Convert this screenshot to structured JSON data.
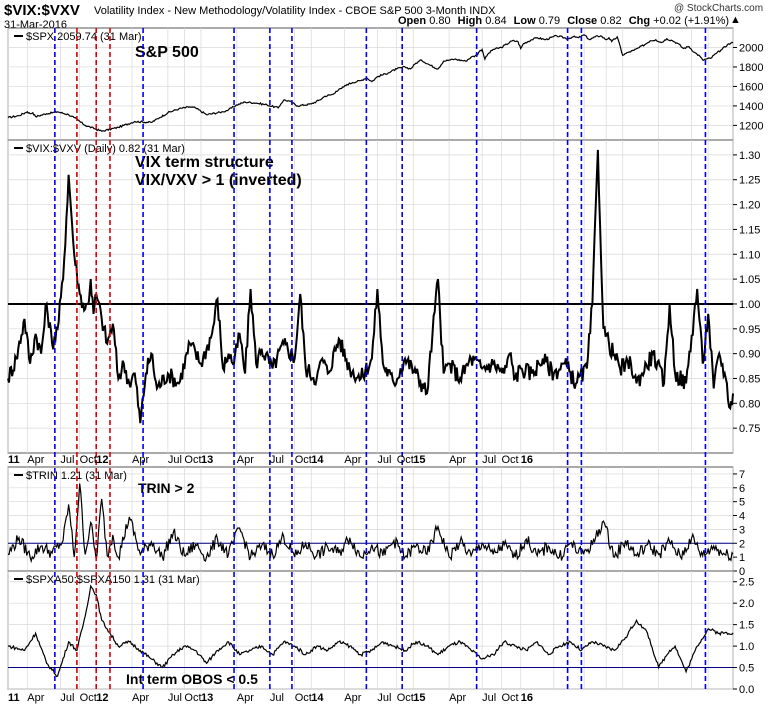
{
  "header": {
    "symbol": "$VIX:$VXV",
    "description": "Volatility Index - New Methodology/Volatility Index - CBOE S&P 500 3-Month  INDX",
    "date": "31-Mar-2016",
    "watermark": "@ StockCharts.com",
    "ohlc": {
      "open_label": "Open",
      "open": "0.80",
      "high_label": "High",
      "high": "0.84",
      "low_label": "Low",
      "low": "0.79",
      "close_label": "Close",
      "close": "0.82",
      "chg_label": "Chg",
      "chg": "+0.02 (+1.91%)"
    }
  },
  "colors": {
    "line": "#000000",
    "blue_marker": "#0000ee",
    "red_marker": "#dd0000",
    "grid": "#d8d8d8",
    "ref_line": "#000080"
  },
  "chart_data": [
    {
      "id": "spx",
      "type": "line",
      "legend": "$SPX 2059.74 (31 Mar)",
      "annotation": "S&P 500",
      "ylim": [
        1050,
        2200
      ],
      "yticks": [
        1200,
        1400,
        1600,
        1800,
        2000
      ],
      "ytick_labels": [
        "1200",
        "1400",
        "1600",
        "1800",
        "2000"
      ],
      "x_anchor": [
        0,
        4,
        7,
        8,
        9,
        10,
        14,
        18,
        22,
        24,
        28,
        34,
        40,
        46,
        52,
        55,
        58,
        62,
        66,
        68,
        72,
        78,
        80,
        83,
        86,
        90,
        94,
        98,
        99,
        100,
        102,
        105,
        110,
        113,
        115,
        118,
        119,
        121,
        123,
        125,
        128,
        130,
        132,
        134,
        138,
        141,
        144,
        146,
        148,
        150,
        153,
        156,
        158,
        160,
        162,
        166,
        168,
        170,
        171,
        172,
        173,
        174,
        176,
        179,
        183,
        185,
        186,
        187,
        190,
        192,
        195,
        199,
        203,
        205,
        207,
        209,
        211,
        213,
        215,
        217,
        218,
        219,
        221,
        223,
        225,
        227,
        229,
        231,
        233,
        235,
        237,
        239,
        241,
        243,
        245,
        247,
        249,
        251,
        252,
        253,
        255,
        256,
        257,
        259,
        261,
        263
      ],
      "values": [
        1280,
        1300,
        1340,
        1320,
        1330,
        1290,
        1320,
        1340,
        1310,
        1280,
        1200,
        1140,
        1180,
        1240,
        1230,
        1280,
        1330,
        1370,
        1390,
        1380,
        1310,
        1340,
        1360,
        1410,
        1440,
        1430,
        1410,
        1380,
        1420,
        1460,
        1450,
        1400,
        1420,
        1460,
        1500,
        1520,
        1550,
        1580,
        1620,
        1640,
        1660,
        1690,
        1650,
        1700,
        1740,
        1780,
        1800,
        1780,
        1840,
        1870,
        1820,
        1780,
        1860,
        1870,
        1880,
        1860,
        1900,
        1920,
        1960,
        1980,
        1880,
        1930,
        1980,
        2000,
        2070,
        2060,
        1990,
        2040,
        2080,
        2100,
        2080,
        2120,
        2090,
        2110,
        2100,
        2130,
        2080,
        2110,
        2120,
        2080,
        2100,
        2060,
        2110,
        1920,
        1950,
        1970,
        2000,
        2030,
        2070,
        2080,
        2050,
        2090,
        2070,
        2040,
        1990,
        2010,
        1950,
        1910,
        1870,
        1880,
        1890,
        1920,
        1940,
        1980,
        2030,
        2050
      ]
    },
    {
      "id": "vix-vxv",
      "type": "line",
      "legend": "$VIX:$VXV (Daily) 0.82 (31 Mar)",
      "annotation_lines": [
        "VIX term structure",
        "VIX/VXV > 1 (inverted)"
      ],
      "reference_level": 1.0,
      "ylim": [
        0.7,
        1.33
      ],
      "yticks": [
        0.75,
        0.8,
        0.85,
        0.9,
        0.95,
        1.0,
        1.05,
        1.1,
        1.15,
        1.2,
        1.25,
        1.3
      ],
      "ytick_labels": [
        "0.75",
        "0.80",
        "0.85",
        "0.90",
        "0.95",
        "1.00",
        "1.05",
        "1.10",
        "1.15",
        "1.20",
        "1.25",
        "1.30"
      ],
      "x_anchor": [
        0,
        3,
        6,
        8,
        10,
        12,
        14,
        16,
        18,
        20,
        22,
        24,
        26,
        28,
        29,
        30,
        31,
        32,
        34,
        36,
        38,
        40,
        42,
        44,
        46,
        48,
        50,
        52,
        54,
        58,
        62,
        66,
        70,
        74,
        76,
        78,
        80,
        82,
        84,
        86,
        88,
        90,
        92,
        96,
        100,
        104,
        106,
        108,
        112,
        114,
        116,
        120,
        124,
        128,
        132,
        134,
        136,
        140,
        144,
        148,
        152,
        154,
        156,
        158,
        160,
        164,
        168,
        172,
        176,
        180,
        182,
        184,
        186,
        190,
        194,
        198,
        202,
        206,
        210,
        212,
        214,
        216,
        218,
        222,
        226,
        228,
        230,
        234,
        238,
        240,
        242,
        246,
        250,
        252,
        254,
        256,
        258,
        260,
        262,
        263
      ],
      "values": [
        0.85,
        0.89,
        0.97,
        0.88,
        0.94,
        0.9,
        1.0,
        0.92,
        0.95,
        1.05,
        1.26,
        1.1,
        1.02,
        0.99,
        1.0,
        1.05,
        0.98,
        1.02,
        0.97,
        0.92,
        0.96,
        0.85,
        0.88,
        0.84,
        0.86,
        0.76,
        0.86,
        0.9,
        0.83,
        0.86,
        0.84,
        0.92,
        0.88,
        0.94,
        1.01,
        0.87,
        0.9,
        0.88,
        0.94,
        0.86,
        1.03,
        0.88,
        0.91,
        0.87,
        0.92,
        0.89,
        1.02,
        0.87,
        0.85,
        0.89,
        0.86,
        0.93,
        0.87,
        0.85,
        0.89,
        1.03,
        0.88,
        0.84,
        0.89,
        0.86,
        0.82,
        0.94,
        1.05,
        0.86,
        0.88,
        0.85,
        0.89,
        0.87,
        0.88,
        0.86,
        0.9,
        0.85,
        0.87,
        0.86,
        0.89,
        0.86,
        0.88,
        0.84,
        0.87,
        1.0,
        1.31,
        0.95,
        0.92,
        0.87,
        0.88,
        0.84,
        0.86,
        0.9,
        0.84,
        1.0,
        0.86,
        0.84,
        1.03,
        0.88,
        0.98,
        0.83,
        0.9,
        0.86,
        0.79,
        0.82
      ]
    },
    {
      "id": "trin",
      "type": "line",
      "legend": "$TRIN 1.21 (31 Mar)",
      "annotation": "TRIN > 2",
      "reference_level": 2,
      "ylim": [
        0,
        7.5
      ],
      "yticks": [
        0,
        1,
        2,
        3,
        4,
        5,
        6,
        7
      ],
      "ytick_labels": [
        "0",
        "1",
        "2",
        "3",
        "4",
        "5",
        "6",
        "7"
      ],
      "x_anchor": [
        0,
        4,
        8,
        12,
        16,
        20,
        22,
        24,
        26,
        28,
        30,
        32,
        34,
        36,
        38,
        40,
        44,
        48,
        52,
        56,
        60,
        64,
        68,
        72,
        76,
        80,
        84,
        88,
        92,
        96,
        100,
        104,
        108,
        112,
        116,
        120,
        124,
        128,
        132,
        136,
        140,
        144,
        148,
        152,
        156,
        160,
        164,
        168,
        172,
        176,
        180,
        184,
        188,
        192,
        196,
        200,
        204,
        208,
        212,
        216,
        220,
        224,
        228,
        232,
        236,
        240,
        244,
        248,
        252,
        256,
        260,
        263
      ],
      "values": [
        1.2,
        2.4,
        1.0,
        1.8,
        1.3,
        2.2,
        4.8,
        1.0,
        6.3,
        1.2,
        3.5,
        0.8,
        5.2,
        1.1,
        2.6,
        1.0,
        3.9,
        1.2,
        2.1,
        1.0,
        2.8,
        1.1,
        1.9,
        1.0,
        2.3,
        1.2,
        3.1,
        1.0,
        1.8,
        1.2,
        2.5,
        1.0,
        2.0,
        1.1,
        1.7,
        1.3,
        2.4,
        1.0,
        1.9,
        1.1,
        2.2,
        1.0,
        1.8,
        1.2,
        3.2,
        1.0,
        2.1,
        1.1,
        2.0,
        1.2,
        1.9,
        1.0,
        2.3,
        1.1,
        1.8,
        1.0,
        2.0,
        1.2,
        1.9,
        3.6,
        1.0,
        2.2,
        1.1,
        1.9,
        1.2,
        2.1,
        1.0,
        2.4,
        1.1,
        1.8,
        1.2,
        1.21
      ]
    },
    {
      "id": "spxa50-spxa150",
      "type": "line",
      "legend": "$SPXA50:$SPXA150 1.31 (31 Mar)",
      "annotation": "Int term OBOS < 0.5",
      "reference_level": 0.5,
      "ylim": [
        0,
        2.75
      ],
      "yticks": [
        0.0,
        0.5,
        1.0,
        1.5,
        2.0,
        2.5
      ],
      "ytick_labels": [
        "0.0",
        "0.5",
        "1.0",
        "1.5",
        "2.0",
        "2.5"
      ],
      "x_anchor": [
        0,
        6,
        10,
        14,
        18,
        22,
        25,
        28,
        30,
        32,
        34,
        36,
        40,
        44,
        48,
        52,
        56,
        60,
        64,
        68,
        72,
        76,
        80,
        84,
        88,
        92,
        96,
        100,
        104,
        108,
        112,
        116,
        120,
        124,
        128,
        132,
        136,
        140,
        144,
        148,
        152,
        156,
        160,
        164,
        168,
        172,
        176,
        180,
        184,
        188,
        192,
        196,
        200,
        204,
        208,
        212,
        216,
        220,
        224,
        228,
        232,
        236,
        240,
        242,
        246,
        250,
        254,
        258,
        263
      ],
      "values": [
        1.0,
        0.9,
        1.3,
        0.6,
        0.3,
        1.1,
        0.9,
        1.7,
        2.4,
        2.2,
        1.6,
        1.4,
        1.0,
        1.1,
        0.9,
        0.7,
        0.5,
        0.8,
        1.0,
        0.9,
        0.6,
        0.9,
        1.1,
        0.8,
        0.9,
        1.0,
        0.8,
        1.1,
        1.0,
        0.8,
        1.0,
        0.9,
        1.1,
        1.0,
        0.8,
        0.9,
        1.1,
        1.0,
        0.9,
        1.1,
        1.0,
        0.8,
        1.0,
        1.1,
        0.9,
        0.7,
        0.8,
        1.1,
        1.0,
        0.9,
        1.1,
        0.8,
        1.0,
        1.1,
        0.9,
        1.1,
        1.0,
        0.9,
        1.2,
        1.6,
        1.3,
        0.5,
        0.9,
        1.0,
        0.4,
        1.0,
        1.4,
        1.3,
        1.31
      ]
    }
  ],
  "x_axis": {
    "tick_positions": [
      0,
      7,
      19,
      26,
      32,
      45,
      58,
      64,
      70,
      83,
      95,
      104,
      110,
      122,
      134,
      141,
      147,
      160,
      172,
      179,
      186,
      198,
      209,
      217,
      223,
      236,
      248,
      254,
      263
    ],
    "tick_labels": [
      "11",
      "Apr",
      "Jul",
      "Oct",
      "12",
      "Apr",
      "Jul",
      "Oct",
      "13",
      "Apr",
      "Jul",
      "Oct",
      "14",
      "Apr",
      "Jul",
      "Oct",
      "15",
      "Apr",
      "Jul",
      "Oct",
      "16",
      "",
      "",
      "",
      "",
      "",
      "",
      "",
      ""
    ]
  },
  "markers": {
    "blue": [
      17,
      49,
      82,
      95,
      103,
      130,
      143,
      170,
      203,
      208,
      253
    ],
    "red": [
      25,
      32,
      37
    ]
  }
}
